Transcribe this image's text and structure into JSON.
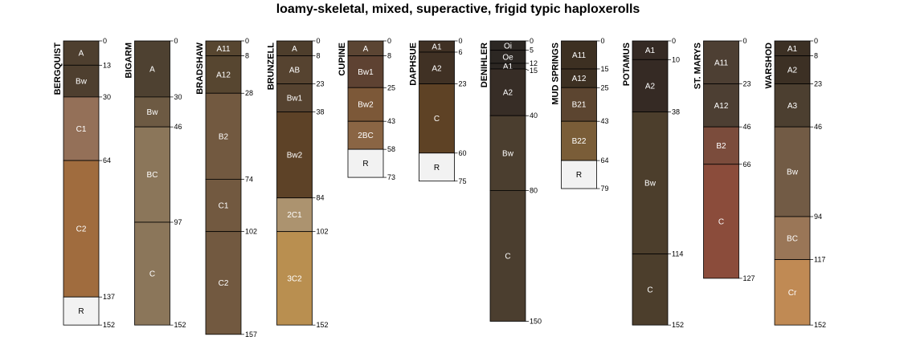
{
  "chart_data": {
    "type": "soil-profile-sketch",
    "title": "loamy-skeletal, mixed, superactive, frigid typic haploxerolls",
    "depth_unit": "cm",
    "profiles": [
      {
        "name": "BERGQUIST",
        "bottom_label": "152",
        "horizons": [
          {
            "name": "A",
            "top": 0,
            "bottom": 13,
            "color": "#4e3f2f",
            "tick": "0"
          },
          {
            "name": "Bw",
            "top": 13,
            "bottom": 30,
            "color": "#4e3f2f",
            "tick": "13"
          },
          {
            "name": "C1",
            "top": 30,
            "bottom": 64,
            "color": "#947058",
            "tick": "30"
          },
          {
            "name": "C2",
            "top": 64,
            "bottom": 137,
            "color": "#a06c3e",
            "tick": "64"
          },
          {
            "name": "R",
            "top": 137,
            "bottom": 152,
            "color": "#f2f2f2",
            "tick": "137"
          }
        ]
      },
      {
        "name": "BIGARM",
        "bottom_label": "152",
        "horizons": [
          {
            "name": "A",
            "top": 0,
            "bottom": 30,
            "color": "#4e4131",
            "tick": "0"
          },
          {
            "name": "Bw",
            "top": 30,
            "bottom": 46,
            "color": "#6d5a43",
            "tick": "30"
          },
          {
            "name": "BC",
            "top": 46,
            "bottom": 97,
            "color": "#8b765a",
            "tick": "46"
          },
          {
            "name": "C",
            "top": 97,
            "bottom": 152,
            "color": "#8b765a",
            "tick": "97"
          }
        ]
      },
      {
        "name": "BRADSHAW",
        "bottom_label": "157",
        "horizons": [
          {
            "name": "A11",
            "top": 0,
            "bottom": 8,
            "color": "#574630",
            "tick": "0"
          },
          {
            "name": "A12",
            "top": 8,
            "bottom": 28,
            "color": "#574630",
            "tick": "8"
          },
          {
            "name": "B2",
            "top": 28,
            "bottom": 74,
            "color": "#725940",
            "tick": "28"
          },
          {
            "name": "C1",
            "top": 74,
            "bottom": 102,
            "color": "#725940",
            "tick": "74"
          },
          {
            "name": "C2",
            "top": 102,
            "bottom": 157,
            "color": "#725940",
            "tick": "102"
          }
        ]
      },
      {
        "name": "BRUNZELL",
        "bottom_label": "152",
        "horizons": [
          {
            "name": "A",
            "top": 0,
            "bottom": 8,
            "color": "#4e3e2c",
            "tick": "0"
          },
          {
            "name": "AB",
            "top": 8,
            "bottom": 23,
            "color": "#564330",
            "tick": "8"
          },
          {
            "name": "Bw1",
            "top": 23,
            "bottom": 38,
            "color": "#564330",
            "tick": "23"
          },
          {
            "name": "Bw2",
            "top": 38,
            "bottom": 84,
            "color": "#5d4227",
            "tick": "38"
          },
          {
            "name": "2C1",
            "top": 84,
            "bottom": 102,
            "color": "#ac936f",
            "tick": "84"
          },
          {
            "name": "3C2",
            "top": 102,
            "bottom": 152,
            "color": "#b98f50",
            "tick": "102"
          }
        ]
      },
      {
        "name": "CUPINE",
        "bottom_label": "73",
        "horizons": [
          {
            "name": "A",
            "top": 0,
            "bottom": 8,
            "color": "#5b4533",
            "tick": "0"
          },
          {
            "name": "Bw1",
            "top": 8,
            "bottom": 25,
            "color": "#5e4232",
            "tick": "8"
          },
          {
            "name": "Bw2",
            "top": 25,
            "bottom": 43,
            "color": "#7c5838",
            "tick": "25"
          },
          {
            "name": "2BC",
            "top": 43,
            "bottom": 58,
            "color": "#8a6544",
            "tick": "43"
          },
          {
            "name": "R",
            "top": 58,
            "bottom": 73,
            "color": "#f2f2f2",
            "tick": "58"
          }
        ]
      },
      {
        "name": "DAPHSUE",
        "bottom_label": "75",
        "horizons": [
          {
            "name": "A1",
            "top": 0,
            "bottom": 6,
            "color": "#403124",
            "tick": "0"
          },
          {
            "name": "A2",
            "top": 6,
            "bottom": 23,
            "color": "#403124",
            "tick": "6"
          },
          {
            "name": "C",
            "top": 23,
            "bottom": 60,
            "color": "#5e4225",
            "tick": "23"
          },
          {
            "name": "R",
            "top": 60,
            "bottom": 75,
            "color": "#f2f2f2",
            "tick": "60"
          }
        ]
      },
      {
        "name": "DENIHLER",
        "bottom_label": "150",
        "horizons": [
          {
            "name": "Oi",
            "top": 0,
            "bottom": 5,
            "color": "#2c2723",
            "tick": "0"
          },
          {
            "name": "Oe",
            "top": 5,
            "bottom": 12,
            "color": "#2c2723",
            "tick": "5"
          },
          {
            "name": "A1",
            "top": 12,
            "bottom": 15,
            "color": "#2c2723",
            "tick": "12"
          },
          {
            "name": "A2",
            "top": 15,
            "bottom": 40,
            "color": "#372d26",
            "tick": "15"
          },
          {
            "name": "Bw",
            "top": 40,
            "bottom": 80,
            "color": "#4b3e2f",
            "tick": "40"
          },
          {
            "name": "C",
            "top": 80,
            "bottom": 150,
            "color": "#4b3e2f",
            "tick": "80"
          }
        ]
      },
      {
        "name": "MUD SPRINGS",
        "bottom_label": "79",
        "horizons": [
          {
            "name": "A11",
            "top": 0,
            "bottom": 15,
            "color": "#3d3022",
            "tick": "0"
          },
          {
            "name": "A12",
            "top": 15,
            "bottom": 25,
            "color": "#3d3022",
            "tick": "15"
          },
          {
            "name": "B21",
            "top": 25,
            "bottom": 43,
            "color": "#5c4530",
            "tick": "25"
          },
          {
            "name": "B22",
            "top": 43,
            "bottom": 64,
            "color": "#7a5d38",
            "tick": "43"
          },
          {
            "name": "R",
            "top": 64,
            "bottom": 79,
            "color": "#f2f2f2",
            "tick": "64"
          }
        ]
      },
      {
        "name": "POTAMUS",
        "bottom_label": "152",
        "horizons": [
          {
            "name": "A1",
            "top": 0,
            "bottom": 10,
            "color": "#352a24",
            "tick": "0"
          },
          {
            "name": "A2",
            "top": 10,
            "bottom": 38,
            "color": "#352a24",
            "tick": "10"
          },
          {
            "name": "Bw",
            "top": 38,
            "bottom": 114,
            "color": "#4c3e2c",
            "tick": "38"
          },
          {
            "name": "C",
            "top": 114,
            "bottom": 152,
            "color": "#4c3e2c",
            "tick": "114"
          }
        ]
      },
      {
        "name": "ST. MARYS",
        "bottom_label": "127",
        "horizons": [
          {
            "name": "A11",
            "top": 0,
            "bottom": 23,
            "color": "#4d3f33",
            "tick": "0"
          },
          {
            "name": "A12",
            "top": 23,
            "bottom": 46,
            "color": "#4d3f33",
            "tick": "23"
          },
          {
            "name": "B2",
            "top": 46,
            "bottom": 66,
            "color": "#7b4c3c",
            "tick": "46"
          },
          {
            "name": "C",
            "top": 66,
            "bottom": 127,
            "color": "#8b4c3b",
            "tick": "66"
          }
        ]
      },
      {
        "name": "WARSHOD",
        "bottom_label": "152",
        "horizons": [
          {
            "name": "A1",
            "top": 0,
            "bottom": 8,
            "color": "#3c3024",
            "tick": "0"
          },
          {
            "name": "A2",
            "top": 8,
            "bottom": 23,
            "color": "#3c3024",
            "tick": "8"
          },
          {
            "name": "A3",
            "top": 23,
            "bottom": 46,
            "color": "#4c3f30",
            "tick": "23"
          },
          {
            "name": "Bw",
            "top": 46,
            "bottom": 94,
            "color": "#725b45",
            "tick": "46"
          },
          {
            "name": "BC",
            "top": 94,
            "bottom": 117,
            "color": "#9a7657",
            "tick": "94"
          },
          {
            "name": "Cr",
            "top": 117,
            "bottom": 152,
            "color": "#c08a54",
            "tick": "117"
          }
        ]
      }
    ]
  }
}
